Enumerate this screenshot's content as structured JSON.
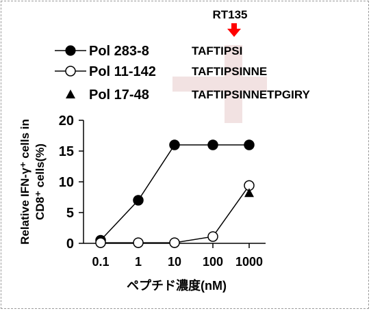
{
  "chart_data": {
    "type": "line",
    "title": "",
    "xlabel": "ペプチド濃度(nM)",
    "ylabel_line1": "Relative IFN-γ⁺ cells in",
    "ylabel_line2": "CD8⁺ cells(%)",
    "x": [
      0.1,
      1,
      10,
      100,
      1000
    ],
    "x_tick_labels": [
      "0.1",
      "1",
      "10",
      "100",
      "1000"
    ],
    "xscale": "log",
    "ylim": [
      0,
      20
    ],
    "y_ticks": [
      0,
      5,
      10,
      15,
      20
    ],
    "grid": false,
    "series": [
      {
        "name": "Pol 283-8",
        "marker": "filled-circle",
        "color": "#000000",
        "peptide": "TAFTIPSI",
        "values": [
          0.5,
          7.0,
          16.0,
          16.0,
          16.0
        ]
      },
      {
        "name": "Pol 11-142",
        "marker": "open-circle",
        "color": "#000000",
        "peptide": "TAFTIPSINNE",
        "values": [
          0.1,
          0.1,
          0.1,
          1.1,
          9.4
        ]
      },
      {
        "name": "Pol 17-48",
        "marker": "filled-triangle",
        "color": "#000000",
        "peptide": "TAFTIPSINNETPGIRY",
        "values": [
          null,
          null,
          null,
          null,
          8.2
        ]
      }
    ],
    "annotation": {
      "text": "RT135",
      "arrow_color": "#ff0000",
      "highlight_color": "#f2e2e2"
    },
    "legend_position": "top-left"
  }
}
